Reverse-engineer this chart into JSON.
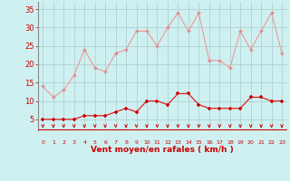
{
  "x": [
    0,
    1,
    2,
    3,
    4,
    5,
    6,
    7,
    8,
    9,
    10,
    11,
    12,
    13,
    14,
    15,
    16,
    17,
    18,
    19,
    20,
    21,
    22,
    23
  ],
  "wind_avg": [
    5,
    5,
    5,
    5,
    6,
    6,
    6,
    7,
    8,
    7,
    10,
    10,
    9,
    12,
    12,
    9,
    8,
    8,
    8,
    8,
    11,
    11,
    10,
    10
  ],
  "wind_gust": [
    14,
    11,
    13,
    17,
    24,
    19,
    18,
    23,
    24,
    29,
    29,
    25,
    30,
    34,
    29,
    34,
    21,
    21,
    19,
    29,
    24,
    29,
    34,
    23
  ],
  "bg_color": "#cff0f0",
  "grid_color": "#aacccc",
  "line_avg_color": "#dd2222",
  "line_gust_color": "#ee9999",
  "marker_color_avg": "#cc0000",
  "marker_color_gust": "#dd8888",
  "arrow_color": "#cc0000",
  "xlabel": "Vent moyen/en rafales ( km/h )",
  "xlabel_color": "#cc0000",
  "tick_color": "#cc0000",
  "yticks": [
    5,
    10,
    15,
    20,
    25,
    30,
    35
  ],
  "ylim": [
    2,
    37
  ],
  "xlim": [
    -0.5,
    23.5
  ]
}
